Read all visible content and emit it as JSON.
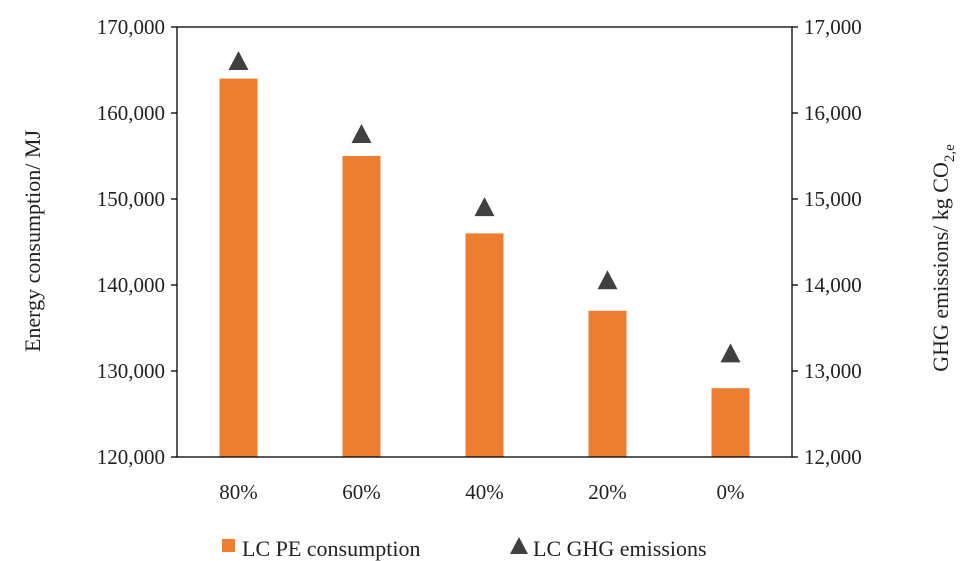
{
  "chart_data": {
    "type": "bar",
    "categories": [
      "80%",
      "60%",
      "40%",
      "20%",
      "0%"
    ],
    "series": [
      {
        "name": "LC PE consumption",
        "type": "bar",
        "axis": "left",
        "color": "#ED7D31",
        "values": [
          164000,
          155000,
          146000,
          137000,
          128000
        ]
      },
      {
        "name": "LC GHG emissions",
        "type": "scatter",
        "marker": "triangle",
        "axis": "right",
        "color": "#404040",
        "values": [
          16600,
          15750,
          14900,
          14050,
          13200
        ]
      }
    ],
    "ylabel": "Energy consumption/ MJ",
    "y2label_main": "GHG emissions/ kg CO",
    "y2label_sub": "2,e",
    "ylim": [
      120000,
      170000
    ],
    "y2lim": [
      12000,
      17000
    ],
    "yticks": [
      "120,000",
      "130,000",
      "140,000",
      "150,000",
      "160,000",
      "170,000"
    ],
    "y2ticks": [
      "12,000",
      "13,000",
      "14,000",
      "15,000",
      "16,000",
      "17,000"
    ],
    "legend_position": "bottom",
    "grid": false
  }
}
